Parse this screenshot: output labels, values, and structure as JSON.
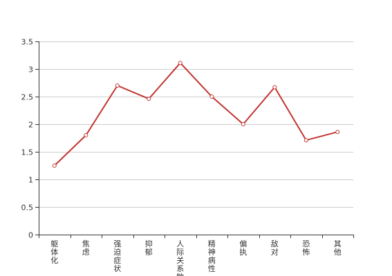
{
  "chart_data": {
    "type": "line",
    "title": "",
    "xlabel": "",
    "ylabel": "",
    "categories": [
      "躯体化",
      "焦虑",
      "强迫症状",
      "抑郁",
      "人际关系敏感",
      "精神病性",
      "偏执",
      "敌对",
      "恐怖",
      "其他"
    ],
    "series": [
      {
        "values": [
          1.25,
          1.8,
          2.7,
          2.46,
          3.11,
          2.5,
          2.0,
          2.67,
          1.71,
          1.86
        ],
        "color": "#c23531"
      }
    ],
    "ylim": [
      0,
      3.5
    ],
    "yticks": [
      "0",
      "0.5",
      "1",
      "1.5",
      "2",
      "2.5",
      "3",
      "3.5"
    ],
    "grid": true,
    "legend": "none"
  }
}
